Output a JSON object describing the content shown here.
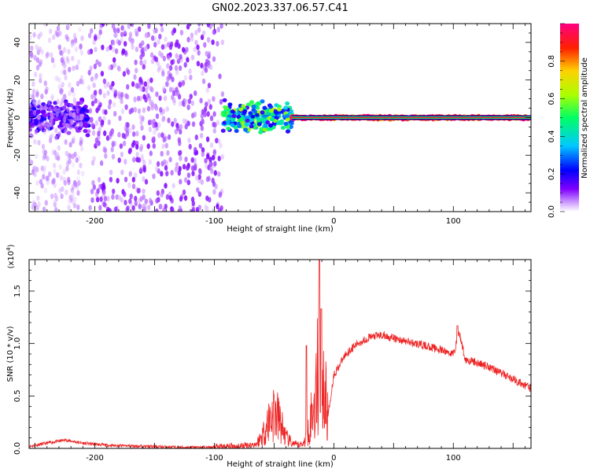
{
  "title": "GN02.2023.337.06.57.C41",
  "chart_data": [
    {
      "type": "heatmap",
      "xlabel": "Height of straight line (km)",
      "ylabel": "Frequency (Hz)",
      "xlim": [
        -255,
        165
      ],
      "ylim": [
        -50,
        50
      ],
      "xticks": [
        -200,
        -100,
        0,
        100
      ],
      "yticks": [
        -40,
        -20,
        0,
        20,
        40
      ],
      "colorbar": {
        "label": "Normalized spectral amplitude",
        "range": [
          0.0,
          1.0
        ],
        "ticks": [
          0.0,
          0.2,
          0.4,
          0.6,
          0.8
        ],
        "colormap": [
          "#ffffff",
          "#8000ff",
          "#0000ff",
          "#00c8ff",
          "#00ff64",
          "#aaff00",
          "#ffd000",
          "#ff2000",
          "#ff0080"
        ]
      },
      "regions": [
        {
          "x": [
            -255,
            -205
          ],
          "freq_spread": 8,
          "amplitude": 0.15,
          "note": "dense low-frequency band"
        },
        {
          "x": [
            -255,
            -210
          ],
          "freq_spread": 50,
          "amplitude": 0.05
        },
        {
          "x": [
            -205,
            -93
          ],
          "freq_spread": 50,
          "amplitude": 0.08
        },
        {
          "x": [
            -93,
            -35
          ],
          "freq_spread": 8,
          "amplitude": 0.4
        },
        {
          "x": [
            -35,
            165
          ],
          "freq_spread": 1.5,
          "amplitude": 0.95,
          "note": "narrow strong line near 0 Hz"
        }
      ]
    },
    {
      "type": "line",
      "xlabel": "Height of straight line (km)",
      "ylabel": "SNR (10 * v/v)",
      "scale_label": "(x10",
      "scale_exp": "4",
      "scale_close": ")",
      "xlim": [
        -255,
        165
      ],
      "ylim": [
        0,
        1.8
      ],
      "xticks": [
        -200,
        -100,
        0,
        100
      ],
      "yticks": [
        0.0,
        0.5,
        1.0,
        1.5
      ],
      "ytick_labels": [
        "0.0",
        "0.5",
        "1.0",
        "1.5"
      ],
      "series": [
        {
          "color": "#ee2222",
          "x": [
            -255,
            -240,
            -225,
            -210,
            -190,
            -160,
            -130,
            -100,
            -80,
            -65,
            -60,
            -55,
            -50,
            -45,
            -40,
            -35,
            -30,
            -25,
            -20,
            -15,
            -12,
            -8,
            -5,
            0,
            10,
            20,
            30,
            40,
            50,
            60,
            80,
            100,
            105,
            110,
            130,
            150,
            165
          ],
          "y": [
            0.02,
            0.05,
            0.08,
            0.05,
            0.03,
            0.02,
            0.01,
            0.01,
            0.02,
            0.04,
            0.12,
            0.25,
            0.35,
            0.25,
            0.1,
            0.05,
            0.03,
            0.05,
            0.25,
            0.5,
            0.9,
            0.55,
            0.3,
            0.7,
            0.9,
            1.0,
            1.06,
            1.08,
            1.05,
            1.02,
            0.97,
            0.9,
            1.1,
            0.85,
            0.78,
            0.66,
            0.57
          ]
        }
      ]
    }
  ]
}
